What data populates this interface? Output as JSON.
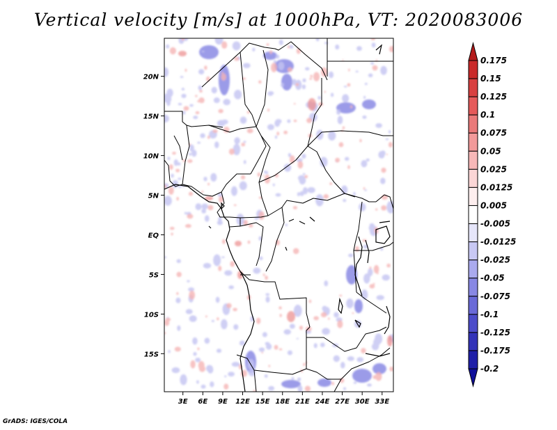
{
  "title": "Vertical velocity [m/s] at 1000hPa, VT: 2020083006",
  "credit": "GrADS: IGES/COLA",
  "map": {
    "lat_ticks": [
      "20N",
      "15N",
      "10N",
      "5N",
      "EQ",
      "5S",
      "10S",
      "15S"
    ],
    "lat_values": [
      20,
      15,
      10,
      5,
      0,
      -5,
      -10,
      -15
    ],
    "lon_ticks": [
      "3E",
      "6E",
      "9E",
      "12E",
      "15E",
      "18E",
      "21E",
      "24E",
      "27E",
      "30E",
      "33E"
    ],
    "lon_values": [
      3,
      6,
      9,
      12,
      15,
      18,
      21,
      24,
      27,
      30,
      33
    ],
    "lat_range": [
      -19.8,
      24.8
    ],
    "lon_range": [
      0.2,
      34.7
    ],
    "field_colors": {
      "positive": "#f4a6a6",
      "negative": "#a9a9f0",
      "strong_negative": "#6a6ad8"
    }
  },
  "colorbar": {
    "labels": [
      "0.175",
      "0.15",
      "0.125",
      "0.1",
      "0.075",
      "0.05",
      "0.025",
      "0.0125",
      "0.005",
      "-0.005",
      "-0.0125",
      "-0.025",
      "-0.05",
      "-0.075",
      "-0.1",
      "-0.125",
      "-0.175",
      "-0.2"
    ],
    "colors": [
      "#b41b1b",
      "#c92a2a",
      "#d84040",
      "#e55a5a",
      "#ea7a7a",
      "#f29a9a",
      "#f7b8b8",
      "#fbd6d6",
      "#fdeeee",
      "#ffffff",
      "#e6e6fa",
      "#c8c8f4",
      "#aaaaee",
      "#8888e4",
      "#6a6ad8",
      "#4c4cca",
      "#3333b8",
      "#1f1fa8",
      "#10109a"
    ]
  }
}
